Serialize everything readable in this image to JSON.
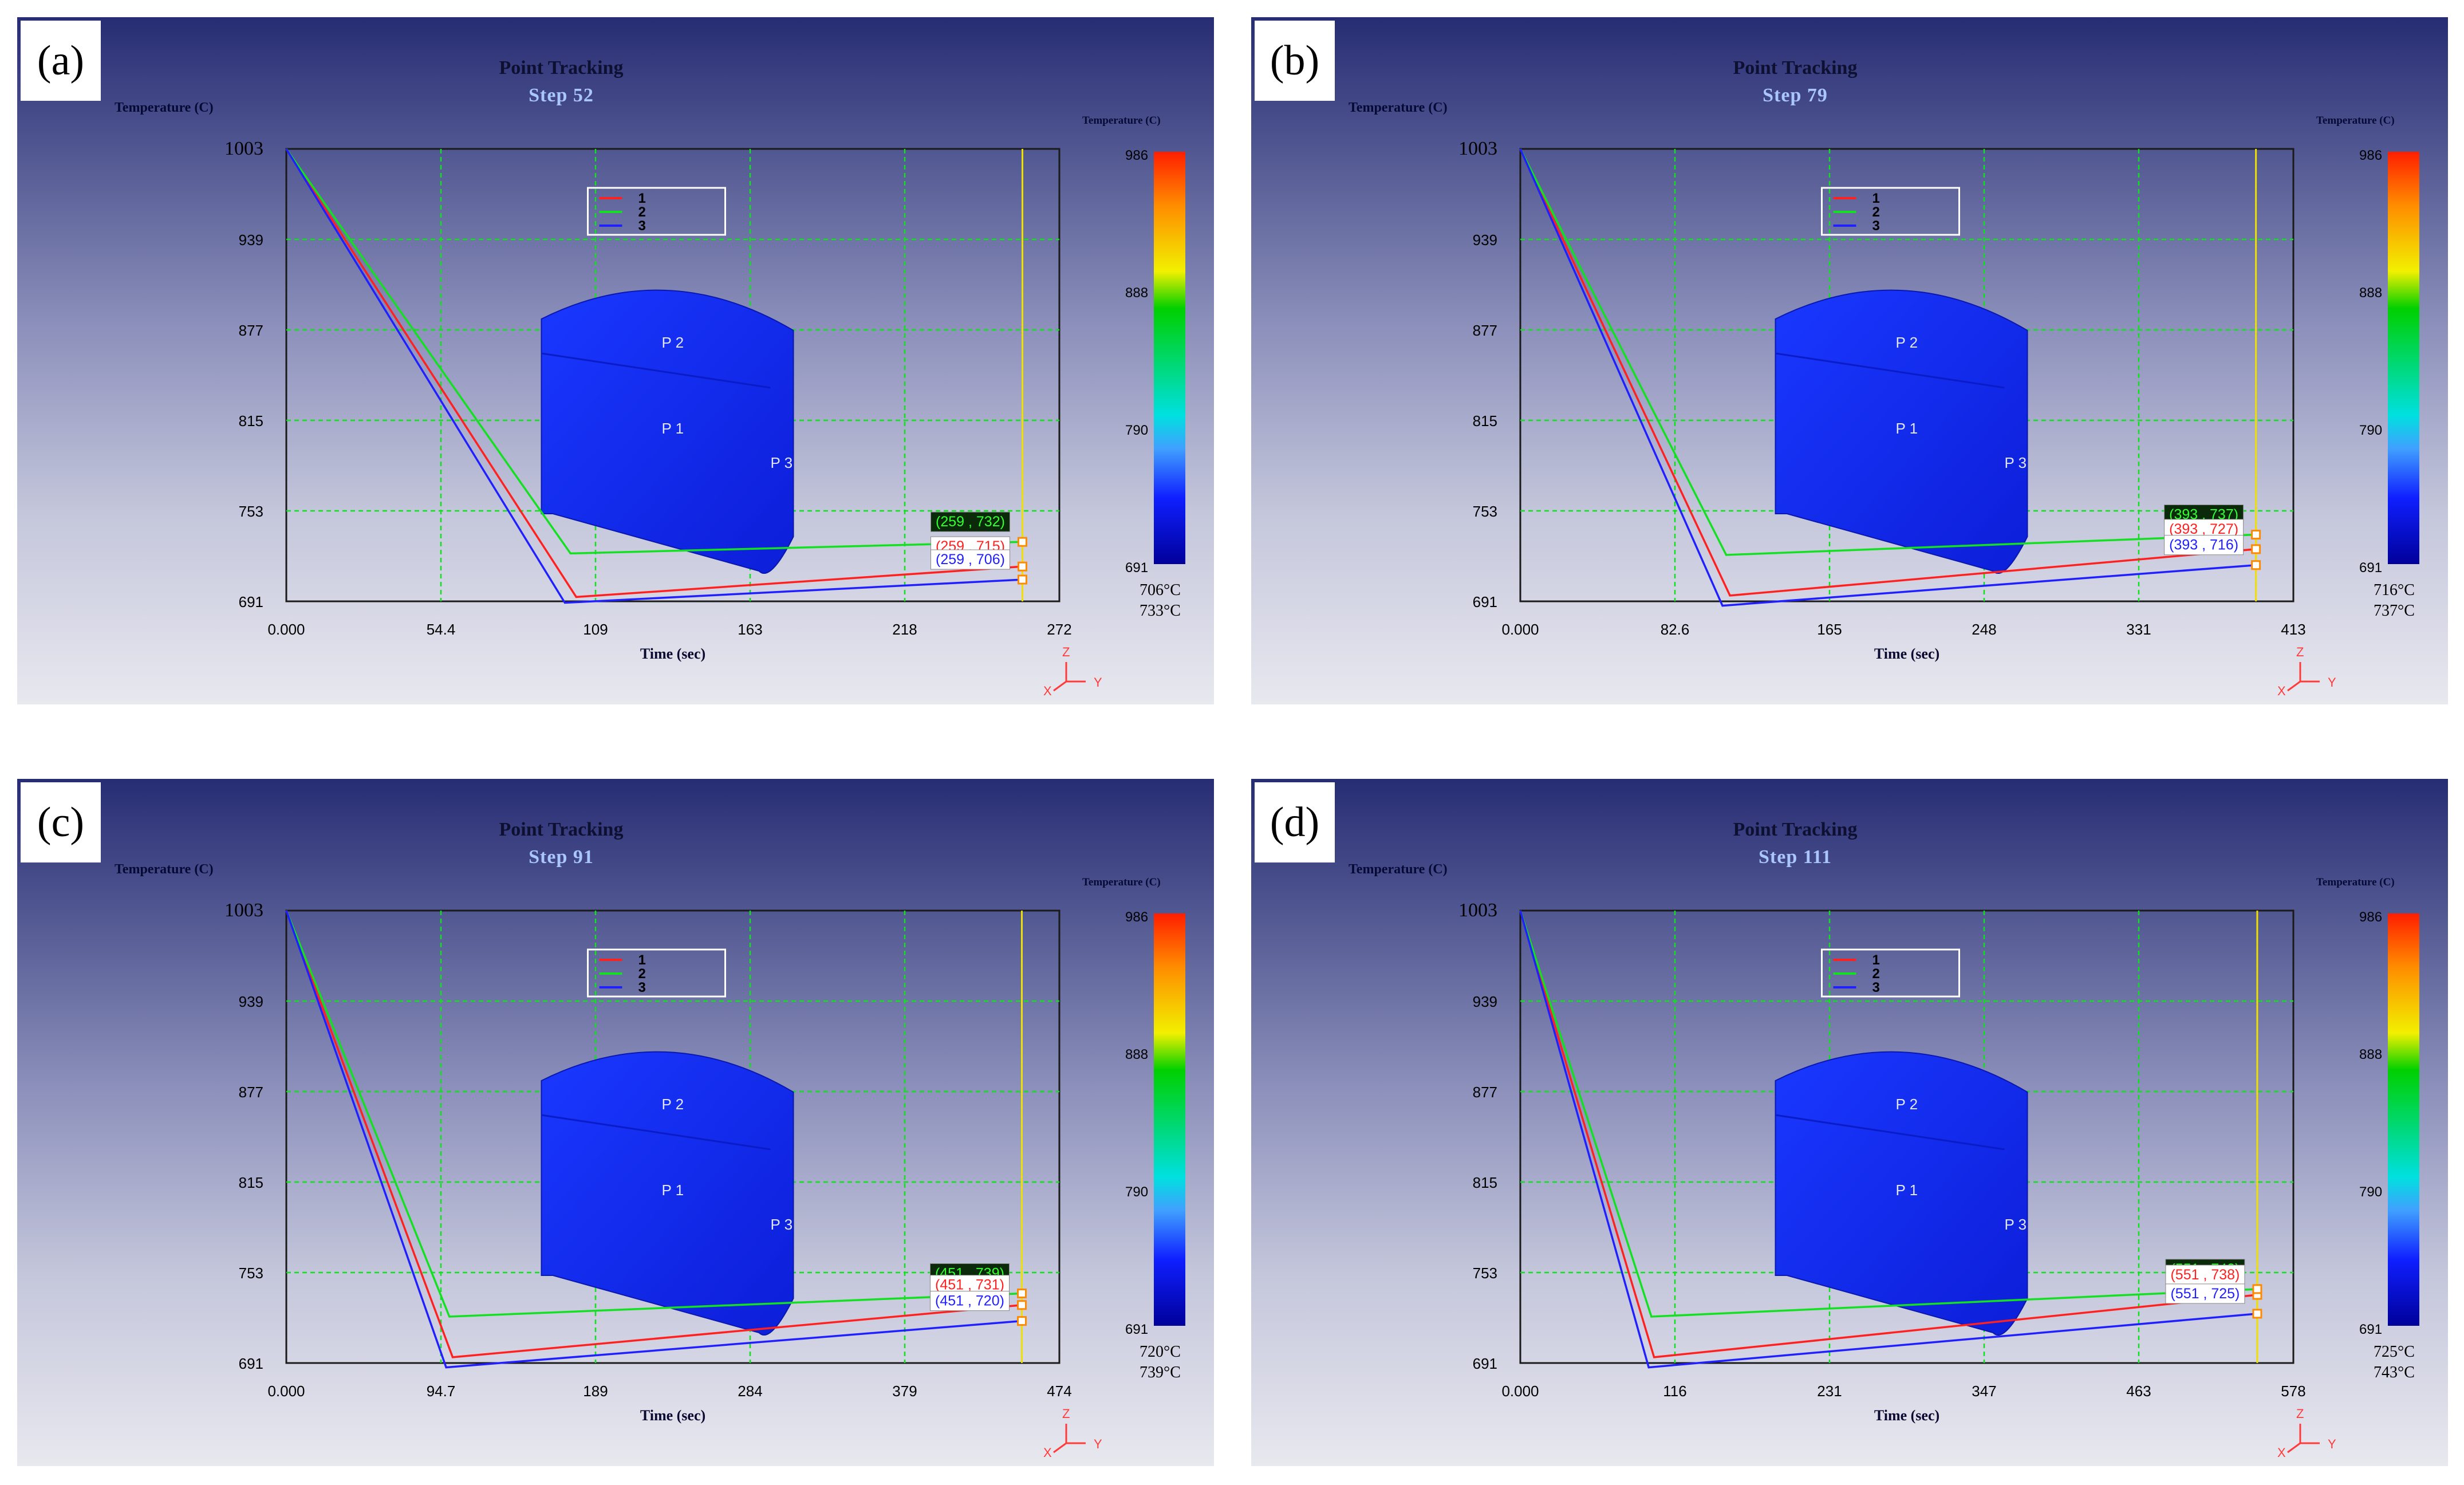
{
  "colors": {
    "series1": "#ff2020",
    "series2": "#12e020",
    "series3": "#2020ff",
    "grid": "#12e020",
    "cursor": "#f0e000",
    "cylinder": "#1530ff"
  },
  "chart_data": [
    {
      "type": "line",
      "panel_tag": "(a)",
      "title": "Point Tracking",
      "subtitle": "Step   52",
      "xlabel": "Time (sec)",
      "ylabel": "Temperature (C)",
      "x_ticks": [
        "0.000",
        "54.4",
        "109",
        "163",
        "218",
        "272"
      ],
      "y_ticks": [
        "1003",
        "939",
        "877",
        "815",
        "753",
        "691"
      ],
      "xlim": [
        0,
        272
      ],
      "ylim": [
        691,
        1003
      ],
      "cursor_x": 259,
      "legend": [
        "1",
        "2",
        "3"
      ],
      "series": [
        {
          "name": "1",
          "x": [
            0,
            102,
            259
          ],
          "y": [
            1003,
            694,
            715
          ]
        },
        {
          "name": "2",
          "x": [
            0,
            100,
            259
          ],
          "y": [
            1003,
            724,
            732
          ]
        },
        {
          "name": "3",
          "x": [
            0,
            98,
            259
          ],
          "y": [
            1003,
            690,
            706
          ]
        }
      ],
      "point_labels": [
        {
          "series": "2",
          "text": "(259 , 732)"
        },
        {
          "series": "1",
          "text": "(259 , 715)"
        },
        {
          "series": "3",
          "text": "(259 , 706)"
        }
      ],
      "model_labels": [
        "P 2",
        "P 1",
        "P 3"
      ],
      "colorbar": {
        "title": "Temperature (C)",
        "ticks": [
          "986",
          "888",
          "790",
          "691"
        ]
      },
      "readout": [
        "706°C",
        "733°C"
      ]
    },
    {
      "type": "line",
      "panel_tag": "(b)",
      "title": "Point Tracking",
      "subtitle": "Step   79",
      "xlabel": "Time (sec)",
      "ylabel": "Temperature (C)",
      "x_ticks": [
        "0.000",
        "82.6",
        "165",
        "248",
        "331",
        "413"
      ],
      "y_ticks": [
        "1003",
        "939",
        "877",
        "815",
        "753",
        "691"
      ],
      "xlim": [
        0,
        413
      ],
      "ylim": [
        691,
        1003
      ],
      "cursor_x": 393,
      "legend": [
        "1",
        "2",
        "3"
      ],
      "series": [
        {
          "name": "1",
          "x": [
            0,
            112,
            393
          ],
          "y": [
            1003,
            695,
            727
          ]
        },
        {
          "name": "2",
          "x": [
            0,
            110,
            393
          ],
          "y": [
            1003,
            723,
            737
          ]
        },
        {
          "name": "3",
          "x": [
            0,
            108,
            393
          ],
          "y": [
            1003,
            688,
            716
          ]
        }
      ],
      "point_labels": [
        {
          "series": "2",
          "text": "(393 , 737)"
        },
        {
          "series": "1",
          "text": "(393 , 727)"
        },
        {
          "series": "3",
          "text": "(393 , 716)"
        }
      ],
      "model_labels": [
        "P 2",
        "P 1",
        "P 3"
      ],
      "colorbar": {
        "title": "Temperature (C)",
        "ticks": [
          "986",
          "888",
          "790",
          "691"
        ]
      },
      "readout": [
        "716°C",
        "737°C"
      ]
    },
    {
      "type": "line",
      "panel_tag": "(c)",
      "title": "Point Tracking",
      "subtitle": "Step   91",
      "xlabel": "Time (sec)",
      "ylabel": "Temperature (C)",
      "x_ticks": [
        "0.000",
        "94.7",
        "189",
        "284",
        "379",
        "474"
      ],
      "y_ticks": [
        "1003",
        "939",
        "877",
        "815",
        "753",
        "691"
      ],
      "xlim": [
        0,
        474
      ],
      "ylim": [
        691,
        1003
      ],
      "cursor_x": 451,
      "legend": [
        "1",
        "2",
        "3"
      ],
      "series": [
        {
          "name": "1",
          "x": [
            0,
            102,
            451
          ],
          "y": [
            1003,
            695,
            731
          ]
        },
        {
          "name": "2",
          "x": [
            0,
            100,
            451
          ],
          "y": [
            1003,
            723,
            739
          ]
        },
        {
          "name": "3",
          "x": [
            0,
            98,
            451
          ],
          "y": [
            1003,
            688,
            720
          ]
        }
      ],
      "point_labels": [
        {
          "series": "2",
          "text": "(451 , 739)"
        },
        {
          "series": "1",
          "text": "(451 , 731)"
        },
        {
          "series": "3",
          "text": "(451 , 720)"
        }
      ],
      "model_labels": [
        "P 2",
        "P 1",
        "P 3"
      ],
      "colorbar": {
        "title": "Temperature (C)",
        "ticks": [
          "986",
          "888",
          "790",
          "691"
        ]
      },
      "readout": [
        "720°C",
        "739°C"
      ]
    },
    {
      "type": "line",
      "panel_tag": "(d)",
      "title": "Point Tracking",
      "subtitle": "Step   111",
      "xlabel": "Time (sec)",
      "ylabel": "Temperature (C)",
      "x_ticks": [
        "0.000",
        "116",
        "231",
        "347",
        "463",
        "578"
      ],
      "y_ticks": [
        "1003",
        "939",
        "877",
        "815",
        "753",
        "691"
      ],
      "xlim": [
        0,
        578
      ],
      "ylim": [
        691,
        1003
      ],
      "cursor_x": 551,
      "legend": [
        "1",
        "2",
        "3"
      ],
      "series": [
        {
          "name": "1",
          "x": [
            0,
            100,
            551
          ],
          "y": [
            1003,
            695,
            738
          ]
        },
        {
          "name": "2",
          "x": [
            0,
            98,
            551
          ],
          "y": [
            1003,
            723,
            742
          ]
        },
        {
          "name": "3",
          "x": [
            0,
            96,
            551
          ],
          "y": [
            1003,
            688,
            725
          ]
        }
      ],
      "point_labels": [
        {
          "series": "2",
          "text": "(551 , 742)"
        },
        {
          "series": "1",
          "text": "(551 , 738)"
        },
        {
          "series": "3",
          "text": "(551 , 725)"
        }
      ],
      "model_labels": [
        "P 2",
        "P 1",
        "P 3"
      ],
      "colorbar": {
        "title": "Temperature (C)",
        "ticks": [
          "986",
          "888",
          "790",
          "691"
        ]
      },
      "readout": [
        "725°C",
        "743°C"
      ]
    }
  ]
}
